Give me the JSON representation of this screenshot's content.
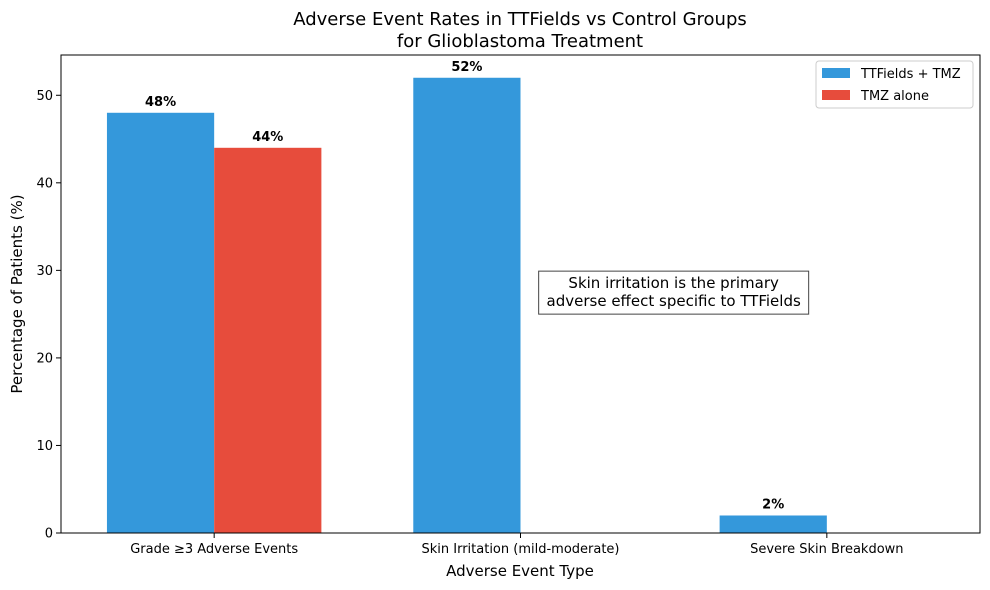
{
  "chart_data": {
    "type": "bar",
    "title": [
      "Adverse Event Rates in TTFields vs Control Groups",
      "for Glioblastoma Treatment"
    ],
    "xlabel": "Adverse Event Type",
    "ylabel": "Percentage of Patients (%)",
    "categories": [
      "Grade ≥3 Adverse Events",
      "Skin Irritation (mild-moderate)",
      "Severe Skin Breakdown"
    ],
    "series": [
      {
        "name": "TTFields + TMZ",
        "color": "#3498db",
        "values": [
          48,
          52,
          2
        ],
        "labels": [
          "48%",
          "52%",
          "2%"
        ]
      },
      {
        "name": "TMZ alone",
        "color": "#e74c3c",
        "values": [
          44,
          null,
          null
        ],
        "labels": [
          "44%",
          null,
          null
        ]
      }
    ],
    "ylim": [
      0,
      54.6
    ],
    "yticks": [
      0,
      10,
      20,
      30,
      40,
      50
    ],
    "legend_position": "top-right",
    "grid": false,
    "annotation": {
      "lines": [
        "Skin irritation is the primary",
        "adverse effect specific to TTFields"
      ],
      "y_value": 25
    }
  }
}
